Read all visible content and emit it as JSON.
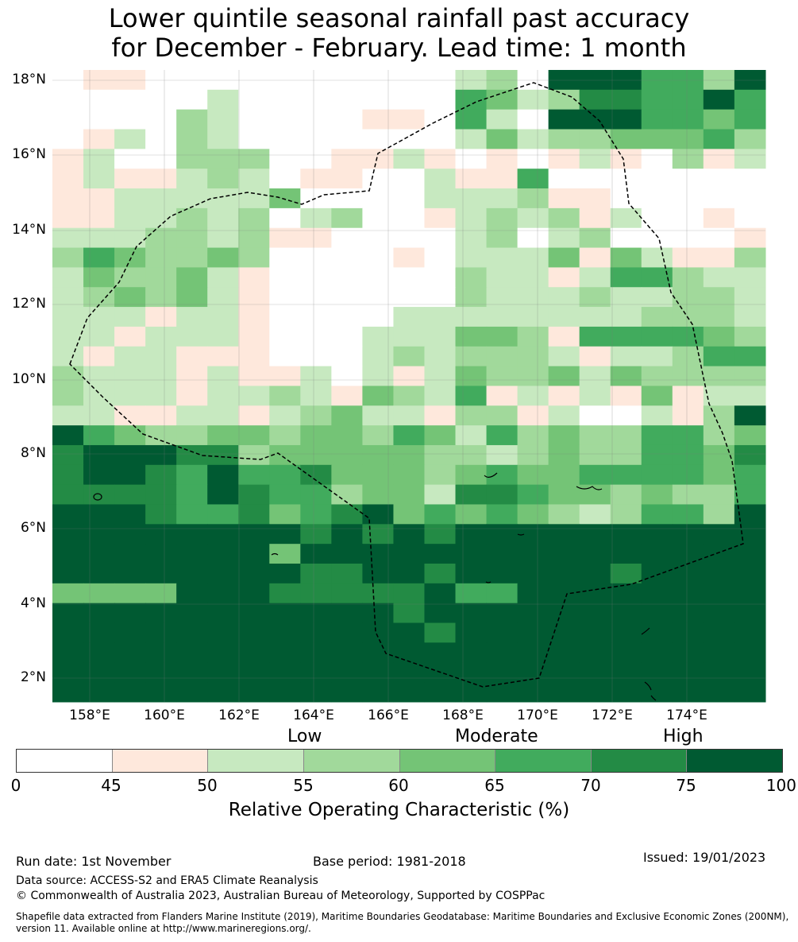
{
  "title": {
    "line1": "Lower quintile seasonal rainfall past accuracy",
    "line2": "for December - February. Lead time: 1 month"
  },
  "map": {
    "lat_labels": [
      "18°N",
      "16°N",
      "14°N",
      "12°N",
      "10°N",
      "8°N",
      "6°N",
      "4°N",
      "2°N"
    ],
    "lon_labels": [
      "158°E",
      "160°E",
      "162°E",
      "164°E",
      "166°E",
      "168°E",
      "170°E",
      "172°E",
      "174°E"
    ],
    "colors": {
      "c0": "#ffffff",
      "c1": "#fee8dc",
      "c2": "#c7e9c0",
      "c3": "#a1d99b",
      "c4": "#74c476",
      "c5": "#41ab5d",
      "c6": "#238b45",
      "c7": "#005a32"
    }
  },
  "colorbar": {
    "categories": [
      "Low",
      "Moderate",
      "High"
    ],
    "ticks": [
      "0",
      "45",
      "50",
      "55",
      "60",
      "65",
      "70",
      "75",
      "100"
    ],
    "label": "Relative Operating Characteristic (%)"
  },
  "footer": {
    "run_date": "Run date: 1st November",
    "base_period": "Base period: 1981-2018",
    "issued": "Issued: 19/01/2023",
    "data_source": "Data source: ACCESS-S2 and ERA5 Climate Reanalysis",
    "copyright": "© Commonwealth of Australia 2023, Australian Bureau of Meteorology, Supported by COSPPac",
    "shapefile": "Shapefile data extracted from Flanders Marine Institute (2019), Maritime Boundaries Geodatabase: Maritime Boundaries and Exclusive Economic Zones (200NM), version 11. Available online at http://www.marineregions.org/."
  }
}
